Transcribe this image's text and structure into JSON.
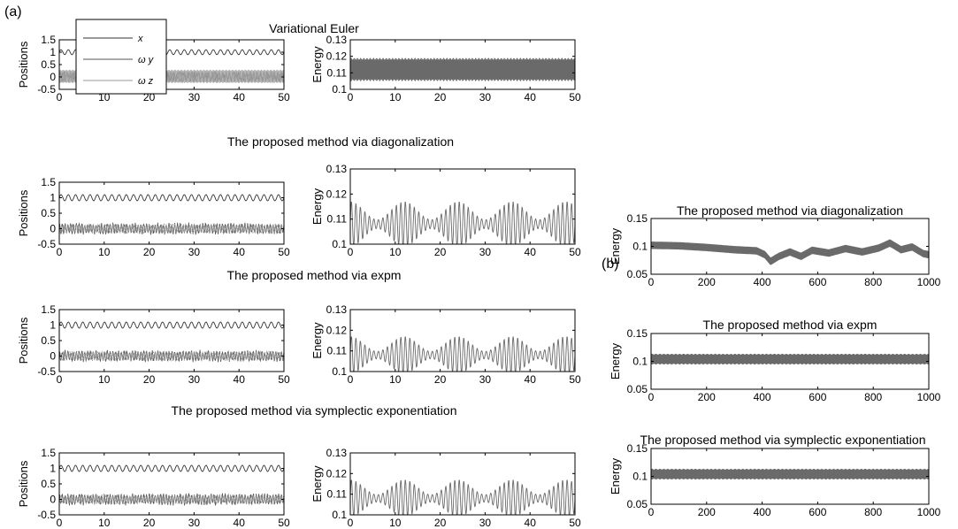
{
  "figure": {
    "panel_a_label": "(a)",
    "panel_b_label": "(b)"
  },
  "colors": {
    "x": "#333333",
    "wy": "#555555",
    "wz": "#9a9a9a",
    "energy": "#6a6a6a",
    "band": "#b5b5b5"
  },
  "chart_data": [
    {
      "id": "a-ve-pos",
      "type": "line",
      "title": "Variational Euler",
      "ylabel": "Positions",
      "xlim": [
        0,
        50
      ],
      "ylim": [
        -0.5,
        1.5
      ],
      "xticks": [
        "0",
        "10",
        "20",
        "30",
        "40",
        "50"
      ],
      "yticks": [
        "-0.5",
        "0",
        "0.5",
        "1",
        "1.5"
      ],
      "legend": {
        "placement": "top-left",
        "entries": [
          "x",
          "ω y",
          "ω z"
        ]
      },
      "series": [
        {
          "name": "x",
          "center": 1.0,
          "amplitude": 0.1,
          "cycles_per_unit": 0.62,
          "style": "sine"
        },
        {
          "name": "ω y",
          "band": [
            -0.2,
            0.25
          ],
          "style": "band"
        },
        {
          "name": "ω z",
          "center": 0.0,
          "amplitude": 0.2,
          "cycles_per_unit": 1.3,
          "style": "sine"
        }
      ]
    },
    {
      "id": "a-ve-en",
      "type": "line",
      "title": "",
      "ylabel": "Energy",
      "xlim": [
        0,
        50
      ],
      "ylim": [
        0.1,
        0.13
      ],
      "xticks": [
        "0",
        "10",
        "20",
        "30",
        "40",
        "50"
      ],
      "yticks": [
        "0.1",
        "0.11",
        "0.12",
        "0.13"
      ],
      "series": [
        {
          "name": "",
          "band": [
            0.106,
            0.118
          ],
          "style": "band-dark"
        }
      ]
    },
    {
      "id": "a-diag-pos",
      "type": "line",
      "title": "The proposed method via diagonalization",
      "ylabel": "Positions",
      "xlim": [
        0,
        50
      ],
      "ylim": [
        -0.5,
        1.5
      ],
      "xticks": [
        "0",
        "10",
        "20",
        "30",
        "40",
        "50"
      ],
      "yticks": [
        "-0.5",
        "0",
        "0.5",
        "1",
        "1.5"
      ],
      "series": [
        {
          "name": "x",
          "center": 1.0,
          "amplitude": 0.1,
          "cycles_per_unit": 0.62,
          "style": "sine"
        },
        {
          "name": "ω y",
          "center": 0.0,
          "amplitude": 0.2,
          "cycles_per_unit": 1.6,
          "style": "noisy"
        },
        {
          "name": "ω z",
          "center": 0.0,
          "amplitude": 0.18,
          "cycles_per_unit": 2.1,
          "style": "noisy"
        }
      ]
    },
    {
      "id": "a-diag-en",
      "type": "line",
      "title": "",
      "ylabel": "Energy",
      "xlim": [
        0,
        50
      ],
      "ylim": [
        0.1,
        0.13
      ],
      "xticks": [
        "0",
        "10",
        "20",
        "30",
        "40",
        "50"
      ],
      "yticks": [
        "0.1",
        "0.11",
        "0.12",
        "0.13"
      ],
      "series": [
        {
          "name": "",
          "center": 0.108,
          "amplitude": 0.009,
          "cycles_per_unit": 1.0,
          "envelope_period": 12,
          "style": "beat"
        }
      ]
    },
    {
      "id": "a-expm-pos",
      "type": "line",
      "title": "The proposed method via expm",
      "ylabel": "Positions",
      "xlim": [
        0,
        50
      ],
      "ylim": [
        -0.5,
        1.5
      ],
      "xticks": [
        "0",
        "10",
        "20",
        "30",
        "40",
        "50"
      ],
      "yticks": [
        "-0.5",
        "0",
        "0.5",
        "1",
        "1.5"
      ],
      "series": [
        {
          "name": "x",
          "center": 1.0,
          "amplitude": 0.1,
          "cycles_per_unit": 0.62,
          "style": "sine"
        },
        {
          "name": "ω y",
          "center": 0.0,
          "amplitude": 0.2,
          "cycles_per_unit": 1.6,
          "style": "noisy"
        },
        {
          "name": "ω z",
          "center": 0.0,
          "amplitude": 0.18,
          "cycles_per_unit": 2.1,
          "style": "noisy"
        }
      ]
    },
    {
      "id": "a-expm-en",
      "type": "line",
      "title": "",
      "ylabel": "Energy",
      "xlim": [
        0,
        50
      ],
      "ylim": [
        0.1,
        0.13
      ],
      "xticks": [
        "0",
        "10",
        "20",
        "30",
        "40",
        "50"
      ],
      "yticks": [
        "0.1",
        "0.11",
        "0.12",
        "0.13"
      ],
      "series": [
        {
          "name": "",
          "center": 0.108,
          "amplitude": 0.009,
          "cycles_per_unit": 1.0,
          "envelope_period": 12,
          "style": "beat"
        }
      ]
    },
    {
      "id": "a-symp-pos",
      "type": "line",
      "title": "The proposed method via symplectic exponentiation",
      "ylabel": "Positions",
      "xlim": [
        0,
        50
      ],
      "ylim": [
        -0.5,
        1.5
      ],
      "xticks": [
        "0",
        "10",
        "20",
        "30",
        "40",
        "50"
      ],
      "yticks": [
        "-0.5",
        "0",
        "0.5",
        "1",
        "1.5"
      ],
      "series": [
        {
          "name": "x",
          "center": 1.0,
          "amplitude": 0.1,
          "cycles_per_unit": 0.62,
          "style": "sine"
        },
        {
          "name": "ω y",
          "center": 0.0,
          "amplitude": 0.2,
          "cycles_per_unit": 1.6,
          "style": "noisy"
        },
        {
          "name": "ω z",
          "center": 0.0,
          "amplitude": 0.18,
          "cycles_per_unit": 2.1,
          "style": "noisy"
        }
      ]
    },
    {
      "id": "a-symp-en",
      "type": "line",
      "title": "",
      "ylabel": "Energy",
      "xlim": [
        0,
        50
      ],
      "ylim": [
        0.1,
        0.13
      ],
      "xticks": [
        "0",
        "10",
        "20",
        "30",
        "40",
        "50"
      ],
      "yticks": [
        "0.1",
        "0.11",
        "0.12",
        "0.13"
      ],
      "series": [
        {
          "name": "",
          "center": 0.108,
          "amplitude": 0.009,
          "cycles_per_unit": 1.0,
          "envelope_period": 12,
          "style": "beat"
        }
      ]
    },
    {
      "id": "b-diag-en",
      "type": "line",
      "title": "The proposed method via diagonalization",
      "ylabel": "Energy",
      "xlim": [
        0,
        1000
      ],
      "ylim": [
        0.05,
        0.15
      ],
      "xticks": [
        "0",
        "200",
        "400",
        "600",
        "800",
        "1000"
      ],
      "yticks": [
        "0.05",
        "0.1",
        "0.15"
      ],
      "series": [
        {
          "name": "",
          "points": [
            [
              0,
              0.102
            ],
            [
              100,
              0.101
            ],
            [
              200,
              0.098
            ],
            [
              300,
              0.094
            ],
            [
              380,
              0.092
            ],
            [
              410,
              0.085
            ],
            [
              430,
              0.073
            ],
            [
              460,
              0.082
            ],
            [
              500,
              0.09
            ],
            [
              540,
              0.082
            ],
            [
              580,
              0.093
            ],
            [
              640,
              0.088
            ],
            [
              700,
              0.096
            ],
            [
              760,
              0.09
            ],
            [
              820,
              0.097
            ],
            [
              860,
              0.106
            ],
            [
              900,
              0.094
            ],
            [
              940,
              0.099
            ],
            [
              980,
              0.087
            ],
            [
              1000,
              0.085
            ]
          ],
          "band_halfwidth": 0.006,
          "style": "thick-band"
        }
      ]
    },
    {
      "id": "b-expm-en",
      "type": "line",
      "title": "The proposed method via expm",
      "ylabel": "Energy",
      "xlim": [
        0,
        1000
      ],
      "ylim": [
        0.05,
        0.15
      ],
      "xticks": [
        "0",
        "200",
        "400",
        "600",
        "800",
        "1000"
      ],
      "yticks": [
        "0.05",
        "0.1",
        "0.15"
      ],
      "series": [
        {
          "name": "",
          "band": [
            0.096,
            0.112
          ],
          "style": "band-dark"
        }
      ]
    },
    {
      "id": "b-symp-en",
      "type": "line",
      "title": "The proposed method via symplectic exponentiation",
      "ylabel": "Energy",
      "xlim": [
        0,
        1000
      ],
      "ylim": [
        0.05,
        0.15
      ],
      "xticks": [
        "0",
        "200",
        "400",
        "600",
        "800",
        "1000"
      ],
      "yticks": [
        "0.05",
        "0.1",
        "0.15"
      ],
      "series": [
        {
          "name": "",
          "band": [
            0.096,
            0.112
          ],
          "style": "band-dark"
        }
      ]
    }
  ]
}
